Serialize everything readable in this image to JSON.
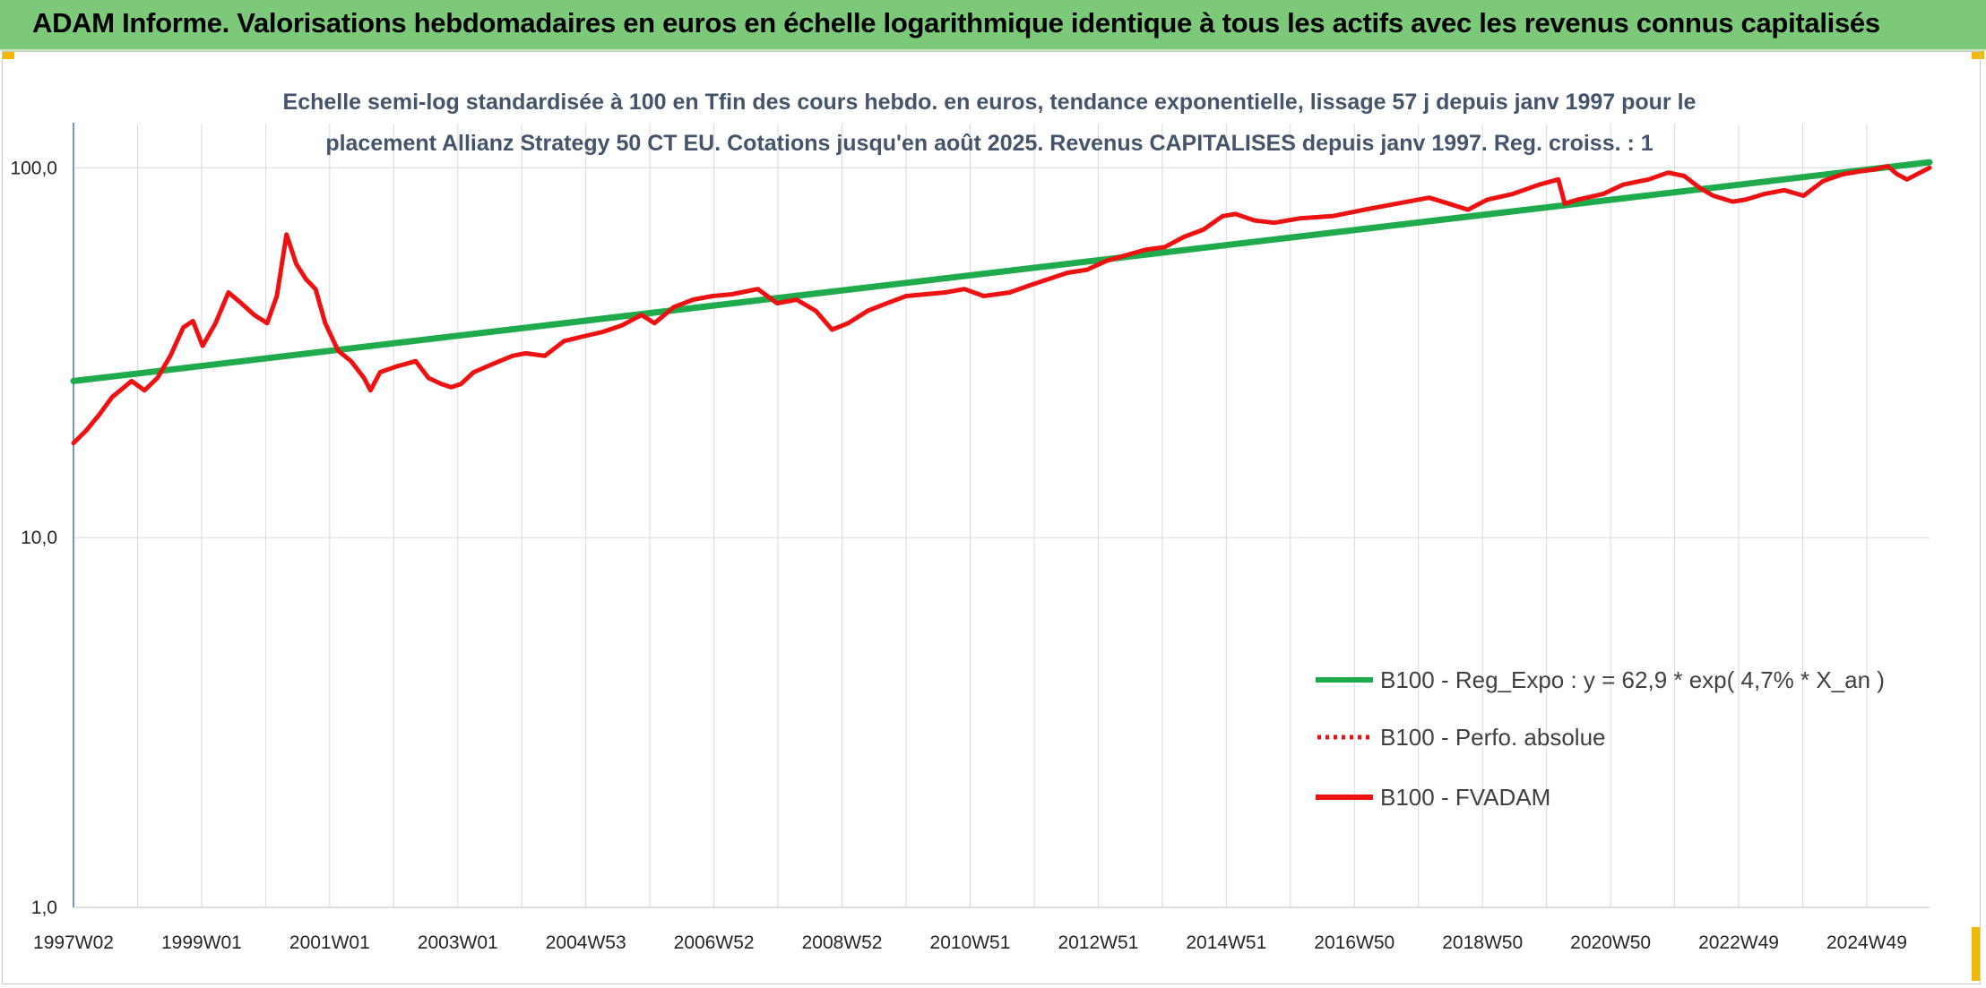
{
  "header": {
    "title": "ADAM Informe. Valorisations hebdomadaires en euros en échelle logarithmique identique à tous les actifs avec les revenus connus capitalisés"
  },
  "colors": {
    "banner": "#7dc97a",
    "corner_accent": "#f5b800",
    "regression": "#1faa4b",
    "fvadam": "#ee1111",
    "perfo": "#ee1111",
    "grid": "#d9d9d9",
    "axis": "#4472c4"
  },
  "chart_data": {
    "type": "line",
    "title_lines": [
      "Echelle semi-log standardisée à 100 en Tfin des cours hebdo. en euros, tendance exponentielle, lissage 57 j depuis janv 1997 pour le",
      "placement Allianz Strategy 50 CT EU. Cotations jusqu'en août 2025. Revenus CAPITALISES depuis janv 1997. Reg. croiss. : 1"
    ],
    "y_scale": "log",
    "ylim": [
      1,
      200
    ],
    "y_ticks": [
      "1,0",
      "10,0",
      "100,0"
    ],
    "x_range_years": [
      1997.0,
      2025.75
    ],
    "x_tick_labels": [
      "1997W02",
      "1999W01",
      "2001W01",
      "2003W01",
      "2004W53",
      "2006W52",
      "2008W52",
      "2010W51",
      "2012W51",
      "2014W51",
      "2016W50",
      "2018W50",
      "2020W50",
      "2022W49",
      "2024W49"
    ],
    "grid": "vertical",
    "legend_position": "bottom-right",
    "series": [
      {
        "name": "B100 - Reg_Expo : y = 62,9 * exp( 4,7% *  X_an )",
        "style": "solid",
        "x": [
          1997.0,
          2025.75
        ],
        "y": [
          26.5,
          103.5
        ]
      },
      {
        "name": "B100 - Perfo. absolue",
        "style": "dotted",
        "x": [],
        "y": []
      },
      {
        "name": "B100 - FVADAM",
        "style": "solid",
        "x": [
          1997.0,
          1997.2,
          1997.4,
          1997.6,
          1997.9,
          1998.1,
          1998.3,
          1998.5,
          1998.7,
          1998.85,
          1999.0,
          1999.2,
          1999.4,
          1999.6,
          1999.8,
          2000.0,
          2000.15,
          2000.3,
          2000.45,
          2000.6,
          2000.75,
          2000.9,
          2001.1,
          2001.3,
          2001.5,
          2001.6,
          2001.75,
          2002.0,
          2002.3,
          2002.5,
          2002.7,
          2002.85,
          2003.0,
          2003.2,
          2003.5,
          2003.8,
          2004.0,
          2004.3,
          2004.6,
          2004.9,
          2005.2,
          2005.5,
          2005.8,
          2006.0,
          2006.3,
          2006.6,
          2006.9,
          2007.2,
          2007.6,
          2007.9,
          2008.2,
          2008.5,
          2008.75,
          2009.0,
          2009.3,
          2009.6,
          2009.9,
          2010.2,
          2010.5,
          2010.8,
          2011.1,
          2011.5,
          2011.8,
          2012.1,
          2012.4,
          2012.7,
          2013.0,
          2013.3,
          2013.6,
          2013.9,
          2014.2,
          2014.5,
          2014.8,
          2015.0,
          2015.3,
          2015.6,
          2016.0,
          2016.5,
          2017.0,
          2017.5,
          2018.0,
          2018.3,
          2018.6,
          2018.9,
          2019.3,
          2019.7,
          2020.0,
          2020.1,
          2020.3,
          2020.7,
          2021.0,
          2021.4,
          2021.7,
          2021.95,
          2022.2,
          2022.4,
          2022.7,
          2022.9,
          2023.2,
          2023.5,
          2023.8,
          2024.1,
          2024.4,
          2024.7,
          2024.9,
          2025.1,
          2025.25,
          2025.4,
          2025.75
        ],
        "y": [
          18,
          19.5,
          21.5,
          24,
          26.5,
          25,
          27,
          31,
          37,
          38.5,
          33,
          38,
          46,
          43,
          40,
          38,
          45,
          66,
          55,
          50,
          47,
          38,
          32,
          30,
          27,
          25,
          28,
          29,
          30,
          27,
          26,
          25.5,
          26,
          28,
          29.5,
          31,
          31.5,
          31,
          34,
          35,
          36,
          37.5,
          40,
          38,
          42,
          44,
          45,
          45.5,
          47,
          43,
          44,
          41,
          36.5,
          38,
          41,
          43,
          45,
          45.5,
          46,
          47,
          45,
          46,
          48,
          50,
          52,
          53,
          56,
          58,
          60,
          61,
          65,
          68,
          74,
          75,
          72,
          71,
          73,
          74,
          77,
          80,
          83,
          80,
          77,
          82,
          85,
          90,
          93,
          80,
          82,
          85,
          90,
          93,
          97,
          95,
          88,
          84,
          81,
          82,
          85,
          87,
          84,
          92,
          96,
          98,
          99,
          101,
          96,
          93,
          100
        ]
      }
    ]
  }
}
